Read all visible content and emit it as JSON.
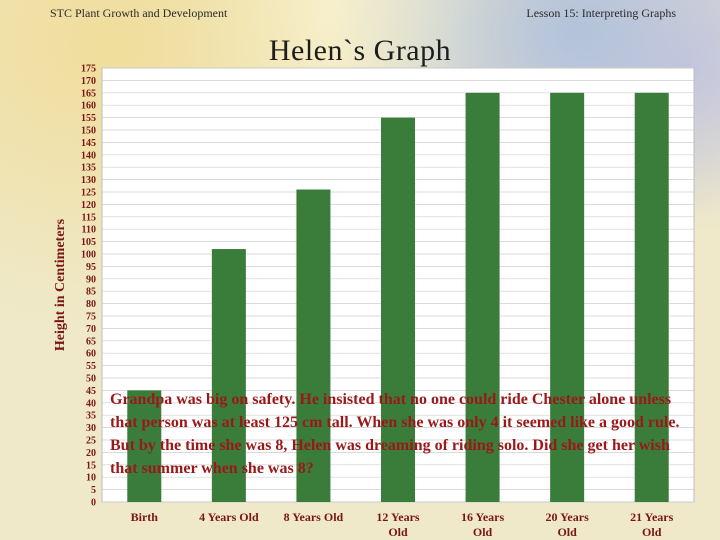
{
  "header": {
    "left": "STC Plant Growth and Development",
    "right": "Lesson 15:  Interpreting Graphs"
  },
  "chart_data": {
    "type": "bar",
    "title": "Helen`s Graph",
    "ylabel": "Height in Centimeters",
    "xlabel": "",
    "categories": [
      "Birth",
      "4 Years Old",
      "8 Years Old",
      "12 Years Old",
      "16 Years Old",
      "20 Years Old",
      "21 Years Old"
    ],
    "values": [
      45,
      102,
      126,
      155,
      165,
      165,
      165
    ],
    "ylim": [
      0,
      175
    ],
    "ytick_step": 5,
    "grid": true,
    "bar_color": "#3a7d3a"
  },
  "caption": "Grandpa was big on safety.  He insisted that no one could ride Chester alone unless that person was at least 125 cm tall.  When she was only 4 it seemed like a good rule.  But by the time she was 8, Helen was dreaming of riding solo.  Did she get her wish that summer when she was 8?",
  "colors": {
    "plot_bg": "#ffffff",
    "grid": "#cfcfcf",
    "tick_text": "#7a1515",
    "caption_text": "#9b1818"
  }
}
